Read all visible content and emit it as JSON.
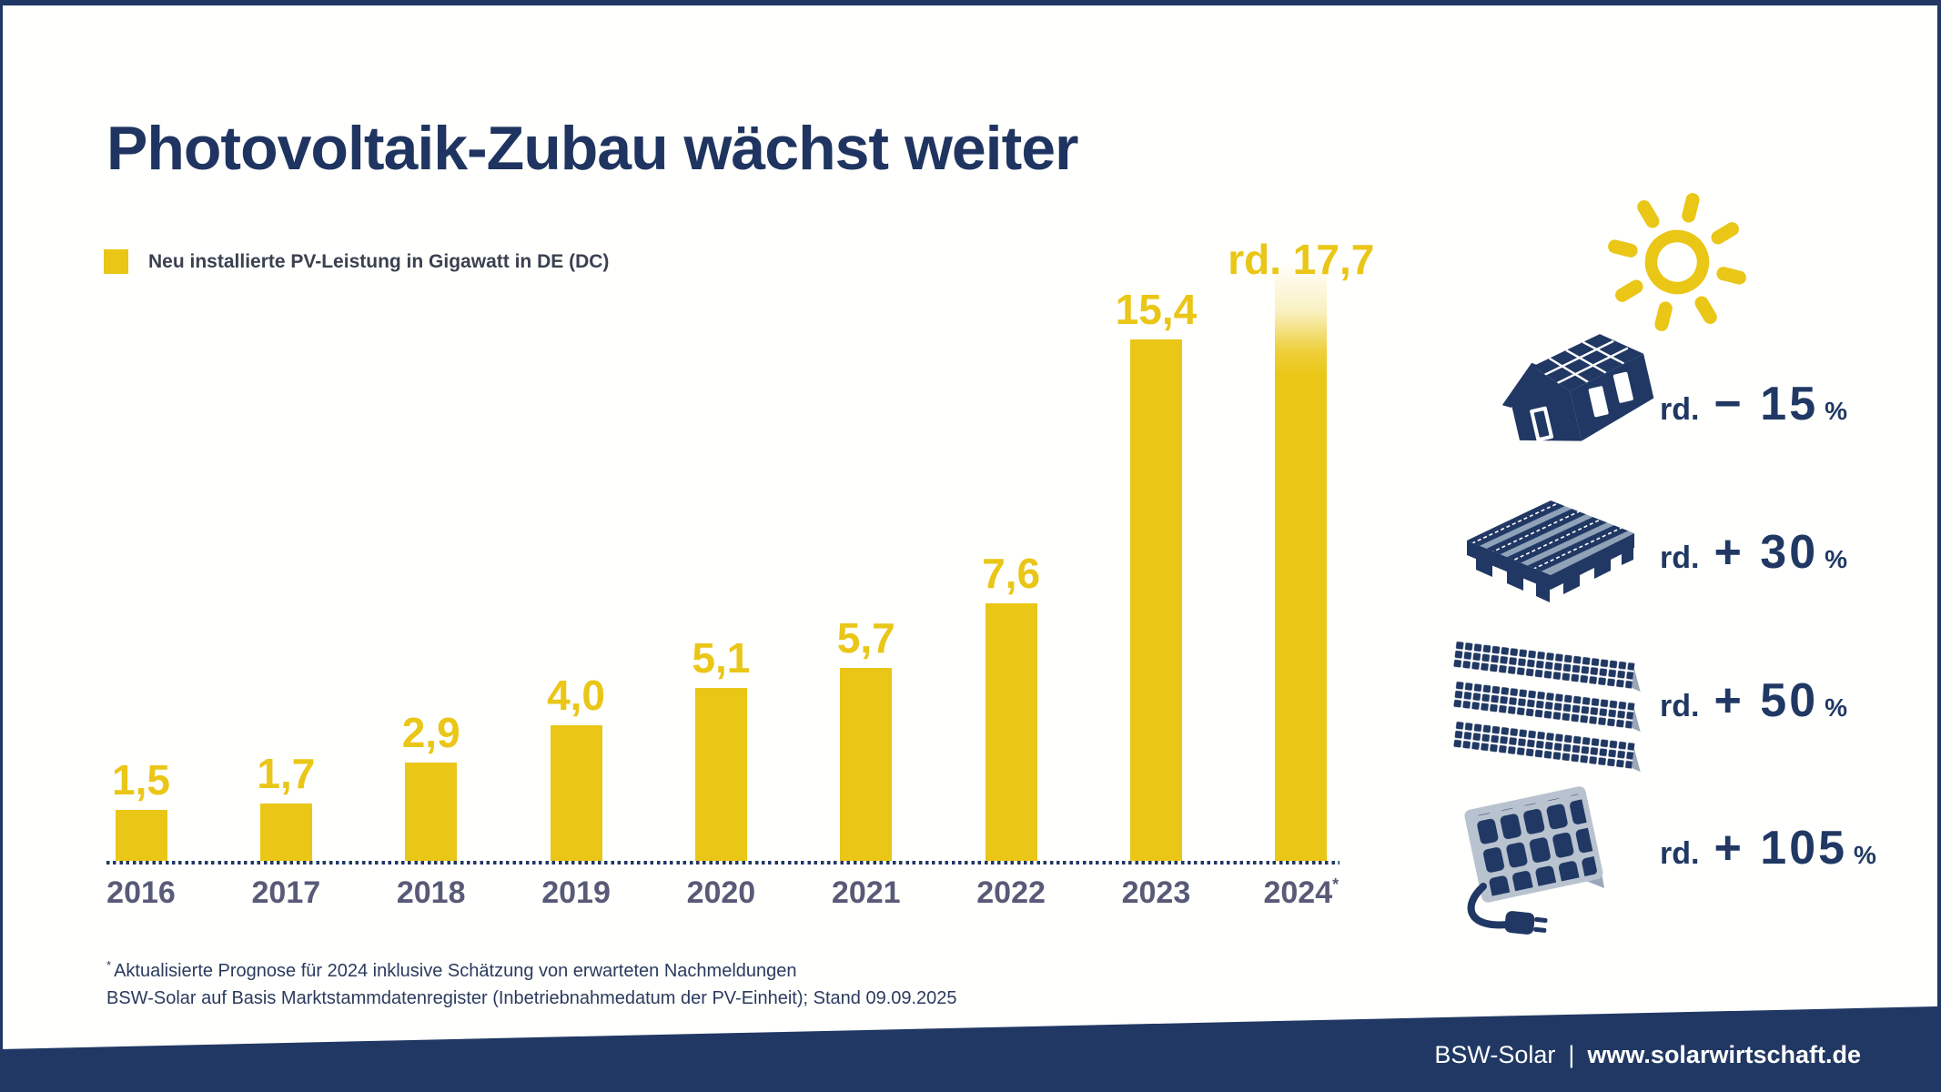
{
  "header": {
    "title": "Photovoltaik-Zubau wächst weiter"
  },
  "legend": {
    "label": "Neu installierte PV-Leistung in Gigawatt in DE (DC)",
    "swatch_color": "#EAC617"
  },
  "chart_data": {
    "type": "bar",
    "title": "Neu installierte PV-Leistung in Gigawatt in DE (DC)",
    "categories": [
      "2016",
      "2017",
      "2018",
      "2019",
      "2020",
      "2021",
      "2022",
      "2023",
      "2024"
    ],
    "values": [
      1.5,
      1.7,
      2.9,
      4.0,
      5.1,
      5.7,
      7.6,
      15.4,
      17.7
    ],
    "bar_labels": [
      "1,5",
      "1,7",
      "2,9",
      "4,0",
      "5,1",
      "5,7",
      "7,6",
      "15,4",
      "rd. 17,7"
    ],
    "forecast_index": 8,
    "forecast_marker": "*",
    "xlabel": "",
    "ylabel": "Gigawatt (DC)",
    "ylim": [
      0,
      18
    ],
    "grid": false,
    "baseline_style": "dotted",
    "bar_color": "#EAC617",
    "value_label_color": "#EAC617",
    "axis_label_color": "#575b77"
  },
  "side_panel": {
    "sun_color": "#EAC617",
    "icon_color": "#203863",
    "segments": [
      {
        "icon": "house-rooftop-pv",
        "rd": "rd.",
        "delta": "− 15",
        "unit": "%"
      },
      {
        "icon": "flat-roof-pv",
        "rd": "rd.",
        "delta": "+ 30",
        "unit": "%"
      },
      {
        "icon": "ground-mounted-pv",
        "rd": "rd.",
        "delta": "+ 50",
        "unit": "%"
      },
      {
        "icon": "balcony-pv",
        "rd": "rd.",
        "delta": "+ 105",
        "unit": "%"
      }
    ]
  },
  "footnotes": {
    "line1_marker": "*",
    "line1": "Aktualisierte Prognose für 2024 inklusive Schätzung von erwarteten Nachmeldungen",
    "line2": "BSW-Solar auf Basis Marktstammdatenregister (Inbetriebnahmedatum der PV-Einheit); Stand 09.09.2025"
  },
  "footer": {
    "brand": "BSW-Solar",
    "separator": "|",
    "url": "www.solarwirtschaft.de",
    "bg_color": "#203863"
  }
}
